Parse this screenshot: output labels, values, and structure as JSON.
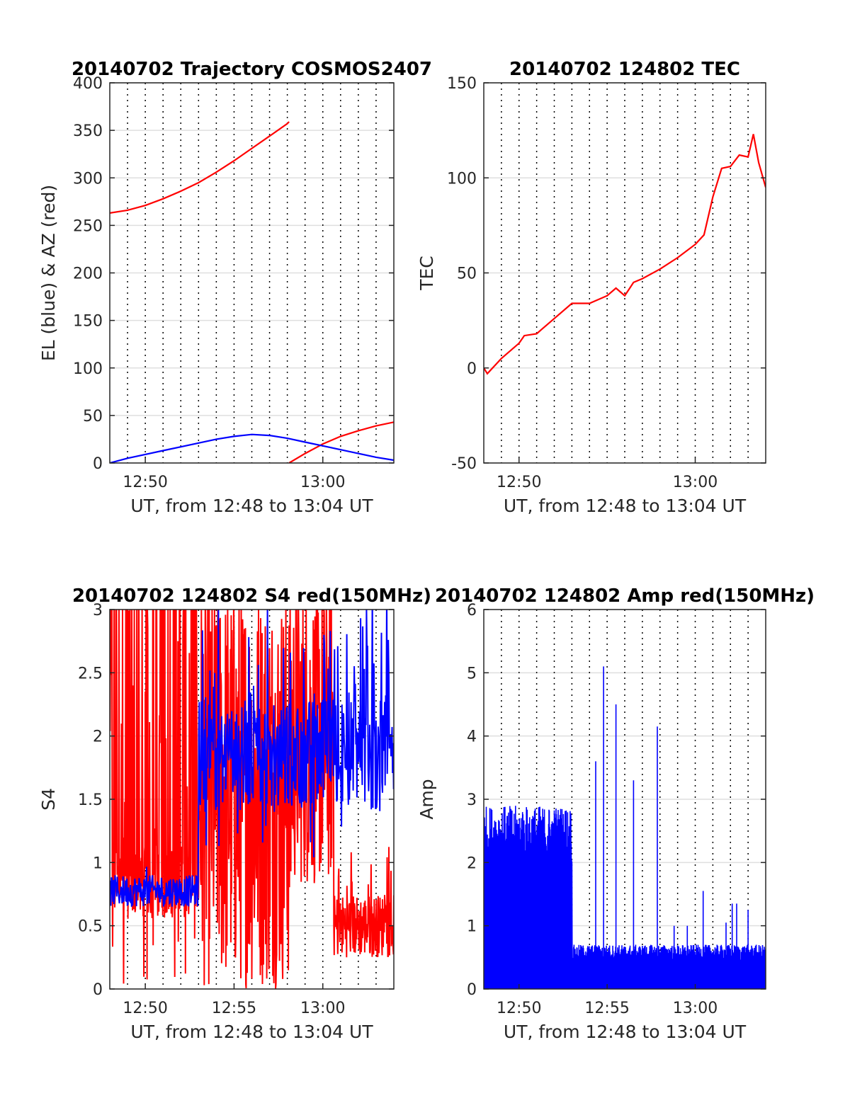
{
  "figure": {
    "background": "#ffffff"
  },
  "chart_data": [
    {
      "type": "line",
      "title": "20140702 Trajectory COSMOS2407",
      "xlabel": "UT, from 12:48 to 13:04 UT",
      "ylabel": "EL (blue) & AZ (red)",
      "xlim": [
        "12:48",
        "13:04"
      ],
      "ylim": [
        0,
        400
      ],
      "xticks": [
        "12:50",
        "13:00"
      ],
      "yticks": [
        0,
        50,
        100,
        150,
        200,
        250,
        300,
        350,
        400
      ],
      "grid": true,
      "minute_grid": "dotted",
      "series": [
        {
          "color": "#ff0000",
          "x": [
            "12:48",
            "12:49",
            "12:50",
            "12:51",
            "12:52",
            "12:53",
            "12:54",
            "12:55",
            "12:56",
            "12:57",
            "12:58",
            "12:58.1"
          ],
          "values": [
            263,
            266,
            271,
            278,
            286,
            295,
            306,
            318,
            331,
            344,
            357,
            359
          ]
        },
        {
          "color": "#ff0000",
          "x": [
            "12:58.1",
            "12:59",
            "13:00",
            "13:01",
            "13:02",
            "13:03",
            "13:04"
          ],
          "values": [
            0,
            10,
            20,
            28,
            34,
            39,
            43
          ]
        },
        {
          "color": "#0000ff",
          "x": [
            "12:48",
            "12:49",
            "12:50",
            "12:51",
            "12:52",
            "12:53",
            "12:54",
            "12:55",
            "12:56",
            "12:57",
            "12:58",
            "12:59",
            "13:00",
            "13:01",
            "13:02",
            "13:03",
            "13:04"
          ],
          "values": [
            0,
            5,
            9,
            13,
            17,
            21,
            25,
            28,
            30,
            29,
            26,
            22,
            18,
            14,
            10,
            6,
            3
          ]
        }
      ]
    },
    {
      "type": "line",
      "title": "20140702 124802 TEC",
      "xlabel": "UT, from 12:48 to 13:04 UT",
      "ylabel": "TEC",
      "xlim": [
        "12:48",
        "13:04"
      ],
      "ylim": [
        -50,
        150
      ],
      "xticks": [
        "12:50",
        "13:00"
      ],
      "yticks": [
        -50,
        0,
        50,
        100,
        150
      ],
      "grid": true,
      "minute_grid": "dotted",
      "series": [
        {
          "color": "#ff0000",
          "x": [
            "12:48",
            "12:48.2",
            "12:49",
            "12:50",
            "12:50.3",
            "12:51",
            "12:52",
            "12:53",
            "12:54",
            "12:55",
            "12:55.5",
            "12:56",
            "12:56.5",
            "12:57",
            "12:58",
            "12:59",
            "13:00",
            "13:00.5",
            "13:01",
            "13:01.5",
            "13:02",
            "13:02.5",
            "13:03",
            "13:03.3",
            "13:03.6",
            "13:04"
          ],
          "values": [
            0,
            -3,
            5,
            13,
            17,
            18,
            26,
            34,
            34,
            38,
            42,
            38,
            45,
            47,
            52,
            58,
            65,
            70,
            90,
            105,
            106,
            112,
            111,
            123,
            108,
            95
          ]
        }
      ]
    },
    {
      "type": "line",
      "title": "20140702 124802 S4 red(150MHz)",
      "xlabel": "UT, from 12:48 to 13:04 UT",
      "ylabel": "S4",
      "xlim": [
        "12:48",
        "13:04"
      ],
      "ylim": [
        0,
        3
      ],
      "xticks": [
        "12:50",
        "12:55",
        "13:00"
      ],
      "yticks": [
        0,
        0.5,
        1,
        1.5,
        2,
        2.5,
        3
      ],
      "grid": true,
      "minute_grid": "dotted",
      "series": [
        {
          "color": "#ff0000",
          "style": "noise",
          "x": [
            "12:48",
            "12:53",
            "12:53",
            "12:57.5",
            "12:58.2",
            "13:00.6",
            "13:00.6",
            "13:04"
          ],
          "values": [
            0,
            3,
            0.3,
            2.0,
            0,
            1.7,
            0.25,
            0.9
          ],
          "note_range": "red band"
        },
        {
          "color": "#0000ff",
          "style": "noise",
          "x": [
            "12:48",
            "12:53",
            "12:53.2",
            "13:04"
          ],
          "values": [
            0.75,
            0.75,
            1.85,
            1.85
          ]
        }
      ]
    },
    {
      "type": "line",
      "title": "20140702 124802 Amp red(150MHz)",
      "xlabel": "UT, from 12:48 to 13:04 UT",
      "ylabel": "Amp",
      "xlim": [
        "12:48",
        "13:04"
      ],
      "ylim": [
        0,
        6
      ],
      "xticks": [
        "12:50",
        "12:55",
        "13:00"
      ],
      "yticks": [
        0,
        1,
        2,
        3,
        4,
        5,
        6
      ],
      "grid": true,
      "minute_grid": "dotted",
      "series": [
        {
          "color": "#0000ff",
          "style": "noise",
          "x": [
            "12:48",
            "12:53",
            "12:53.2",
            "13:04"
          ],
          "values": [
            2.5,
            2.5,
            0.6,
            0.6
          ],
          "peaks": [
            [
              12.7,
              3.6
            ],
            [
              13.6,
              5.1
            ],
            [
              15.0,
              4.5
            ],
            [
              17.0,
              3.3
            ],
            [
              19.7,
              4.15
            ],
            [
              21.6,
              1.0
            ],
            [
              23.1,
              1.0
            ],
            [
              24.9,
              1.55
            ],
            [
              27.5,
              1.05
            ],
            [
              28.2,
              1.35
            ],
            [
              28.7,
              1.35
            ],
            [
              30.0,
              1.25
            ]
          ]
        }
      ]
    }
  ]
}
